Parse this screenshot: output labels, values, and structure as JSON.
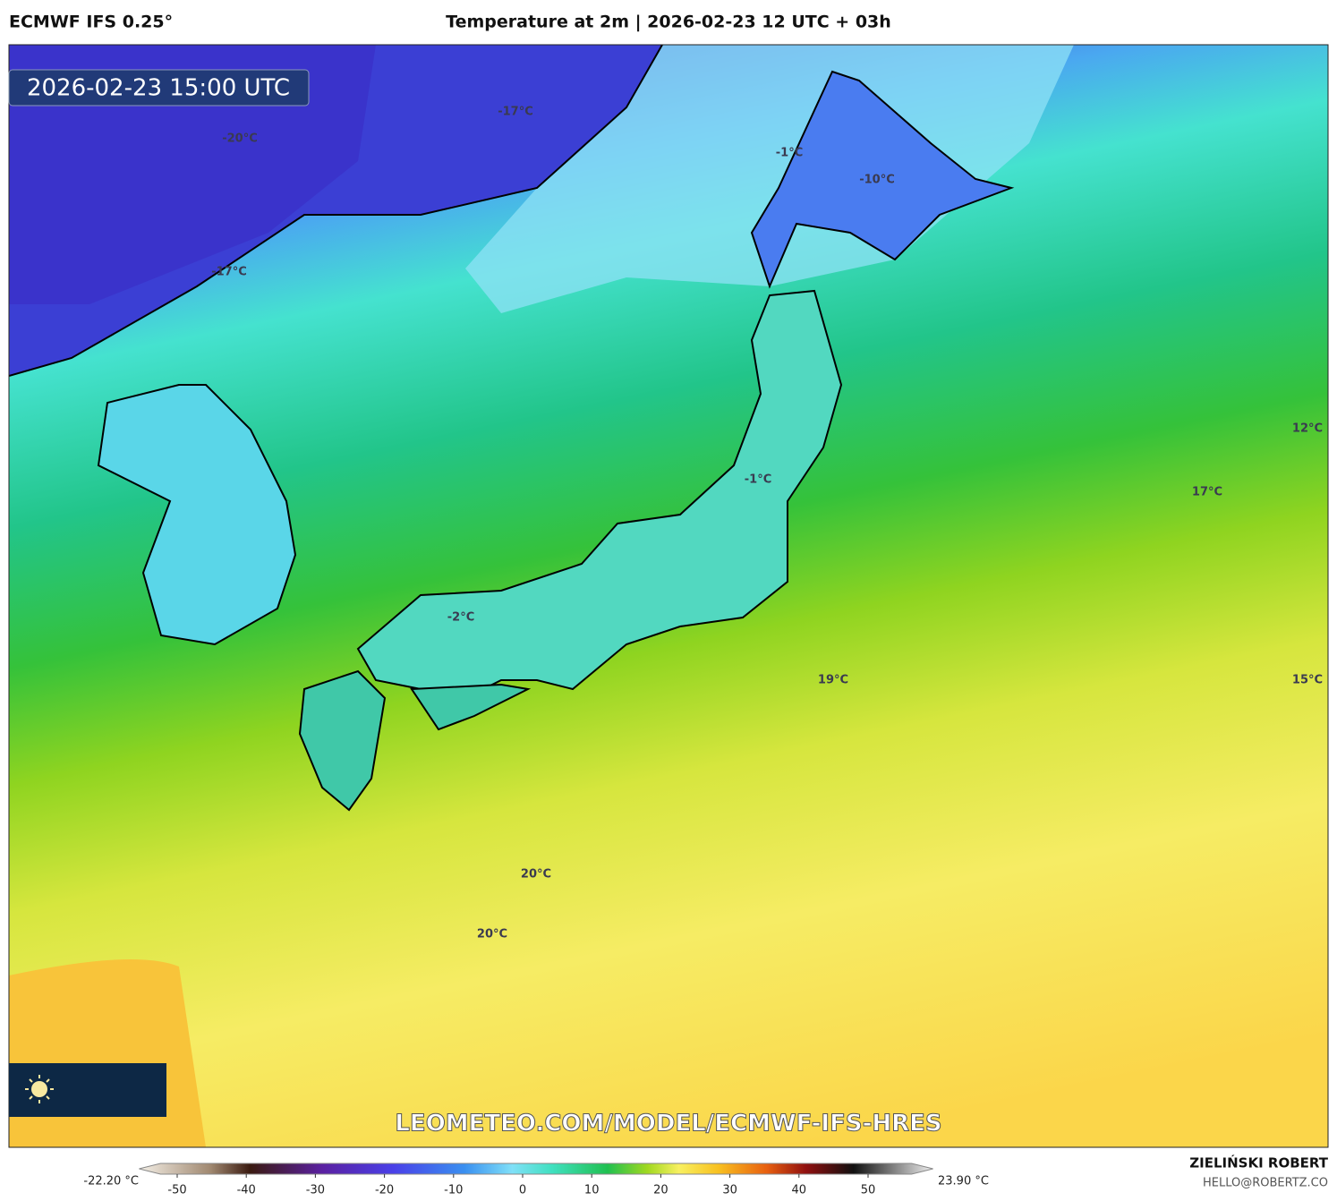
{
  "header": {
    "model": "ECMWF IFS 0.25°",
    "title": "Temperature at 2m | 2026-02-23 12 UTC + 03h"
  },
  "map": {
    "timestamp": "2026-02-23 15:00 UTC",
    "watermark": "LEOMETEO.COM/MODEL/ECMWF-IFS-HRES",
    "labels": [
      "-17°C",
      "-20°C",
      "-17°C",
      "-1°C",
      "-10°C",
      "-1°C",
      "-2°C",
      "12°C",
      "17°C",
      "19°C",
      "15°C",
      "20°C",
      "20°C"
    ]
  },
  "colorbar": {
    "min_label": "-22.20 °C",
    "max_label": "23.90 °C",
    "lim": [
      -55,
      55
    ],
    "ticks": [
      -50,
      -40,
      -30,
      -20,
      -10,
      0,
      10,
      20,
      30,
      40,
      50
    ]
  },
  "author": {
    "name": "ZIELIŃSKI ROBERT",
    "email": "HELLO@ROBERTZ.CO"
  }
}
